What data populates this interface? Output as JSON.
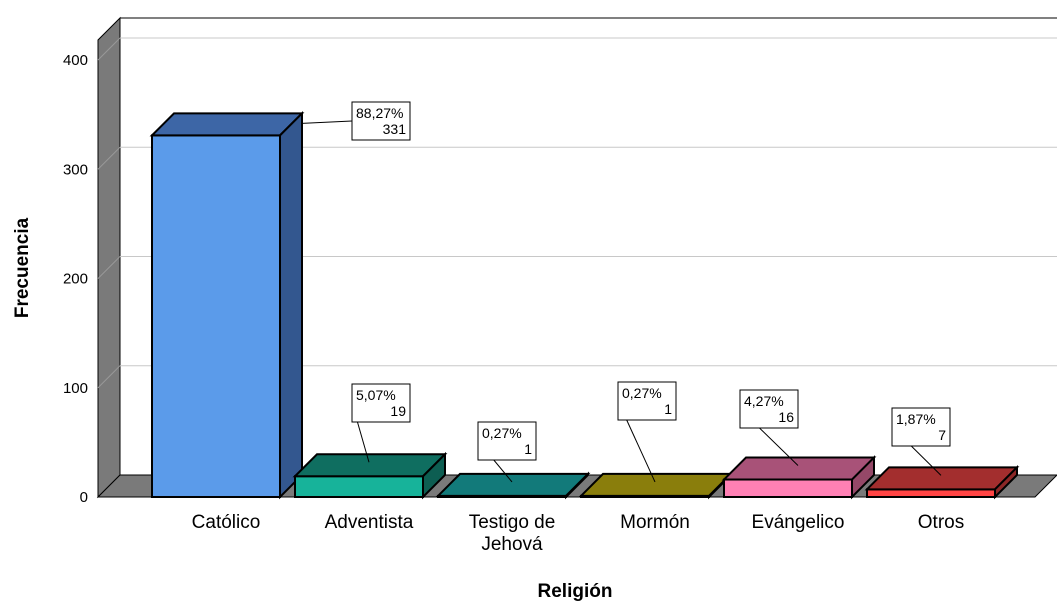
{
  "chart_data": {
    "type": "bar",
    "title": "",
    "xlabel": "Religión",
    "ylabel": "Frecuencia",
    "ylim": [
      0,
      400
    ],
    "yticks": [
      "0",
      "100",
      "200",
      "300",
      "400"
    ],
    "grid": true,
    "legend": "none",
    "categories": [
      {
        "label": [
          "Católico"
        ],
        "value": 331,
        "percent_label": "88,27%",
        "value_label": "331",
        "front_color": "#5b9bea",
        "top_color": "#3d66a6",
        "side_color": "#33578f"
      },
      {
        "label": [
          "Adventista"
        ],
        "value": 19,
        "percent_label": "5,07%",
        "value_label": "19",
        "front_color": "#17b39a",
        "top_color": "#0f6e60",
        "side_color": "#0d5e52"
      },
      {
        "label": [
          "Testigo de",
          "Jehová"
        ],
        "value": 1,
        "percent_label": "0,27%",
        "value_label": "1",
        "front_color": "#148a8a",
        "top_color": "#127a7a",
        "side_color": "#0e6565"
      },
      {
        "label": [
          "Mormón"
        ],
        "value": 1,
        "percent_label": "0,27%",
        "value_label": "1",
        "front_color": "#968a10",
        "top_color": "#8a7e0c",
        "side_color": "#746a0a"
      },
      {
        "label": [
          "Evángelico"
        ],
        "value": 16,
        "percent_label": "4,27%",
        "value_label": "16",
        "front_color": "#ff80b4",
        "top_color": "#a85278",
        "side_color": "#954868"
      },
      {
        "label": [
          "Otros"
        ],
        "value": 7,
        "percent_label": "1,87%",
        "value_label": "7",
        "front_color": "#ff4444",
        "top_color": "#a32e2e",
        "side_color": "#8c2727"
      }
    ]
  }
}
